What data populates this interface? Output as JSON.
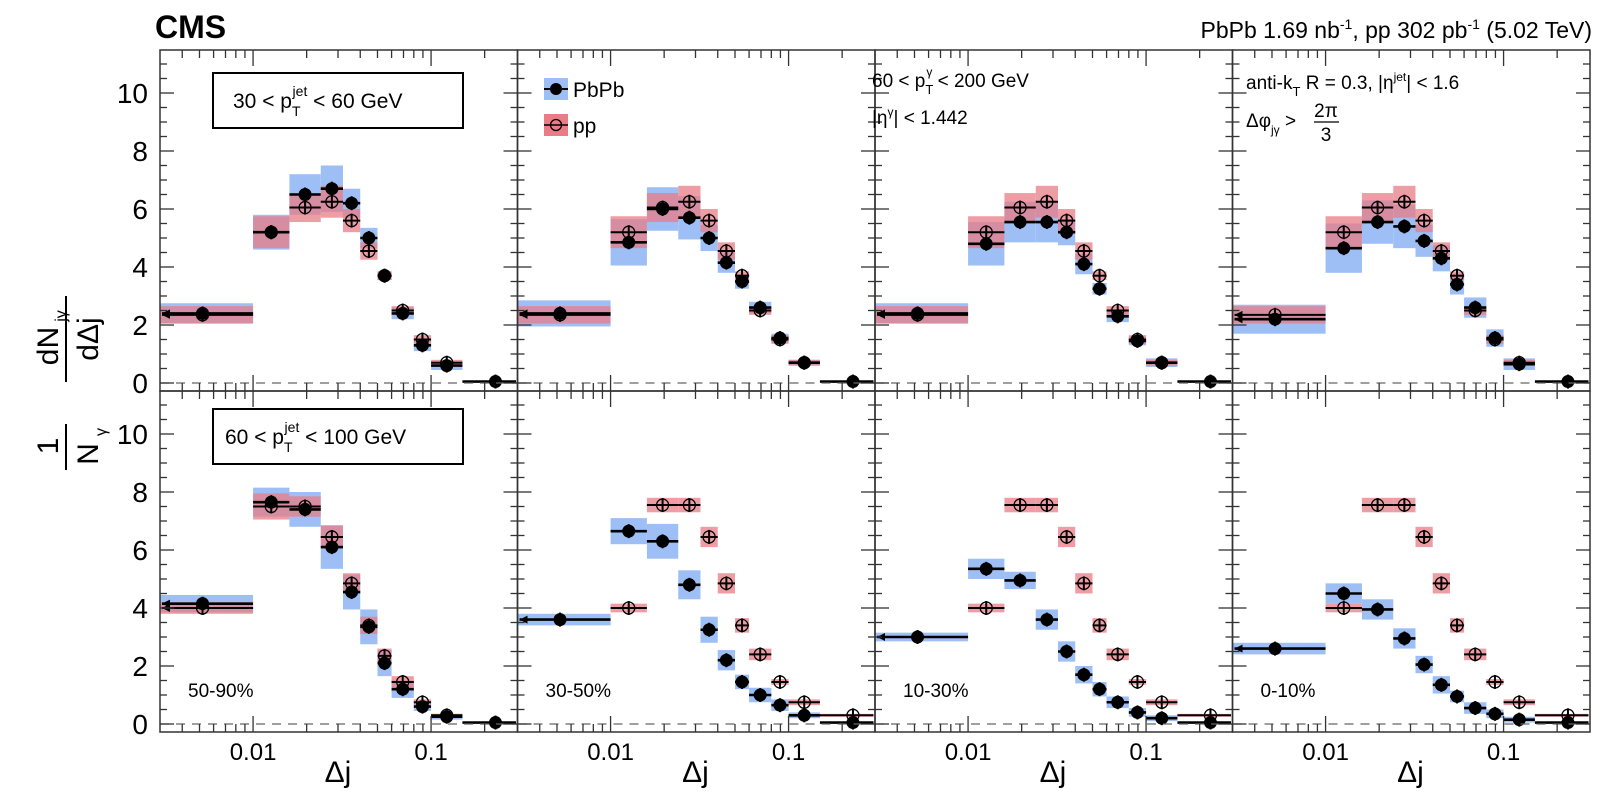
{
  "header": {
    "experiment": "CMS",
    "lumi_text": "PbPb 1.69 nb⁻¹, pp 302 pb⁻¹ (5.02 TeV)",
    "lumi_parts": {
      "a": "PbPb 1.69 nb",
      "a_sup": "-1",
      "b": ", pp 302 pb",
      "b_sup": "-1",
      "c": " (5.02 TeV)"
    }
  },
  "chart_data": {
    "type": "scatter",
    "title": "CMS",
    "xlabel": "Δj",
    "ylabel": "1/N_γ dN_jγ/dΔj",
    "xscale": "log",
    "xlim": [
      0.003,
      0.3
    ],
    "ylim": [
      -0.3,
      11.2
    ],
    "xticks": [
      {
        "v": 0.01,
        "label": "0.01"
      },
      {
        "v": 0.1,
        "label": "0.1"
      }
    ],
    "yticks": [
      0,
      2,
      4,
      6,
      8,
      10
    ],
    "reference_line": 0,
    "bin_edges": [
      0.003,
      0.01,
      0.016,
      0.024,
      0.032,
      0.04,
      0.05,
      0.06,
      0.08,
      0.1,
      0.15,
      0.3
    ],
    "legend": {
      "placement": "top-left of second panel",
      "entries": [
        {
          "name": "PbPb",
          "marker": "filled-circle",
          "color": "#000000",
          "band": "#9dbff5"
        },
        {
          "name": "pp",
          "marker": "open-circle",
          "color": "#000000",
          "band": "#ea7c86"
        }
      ]
    },
    "annotations": {
      "jetpt_top": "30 < p_T^jet < 60 GeV",
      "jetpt_bottom": "60 < p_T^jet < 100 GeV",
      "photon": [
        "60 < p_T^γ < 200 GeV",
        "|η^γ| < 1.442"
      ],
      "jet": [
        "anti-k_T R = 0.3, |η^jet| < 1.6",
        "Δφ_jγ > 2π/3"
      ]
    },
    "rows": [
      {
        "row": "top",
        "jet_pt": "30 < p_T^jet < 60 GeV",
        "panels": [
          {
            "centrality": "50-90%",
            "PbPb": [
              2.4,
              5.2,
              6.5,
              6.7,
              6.2,
              5.0,
              3.7,
              2.4,
              1.3,
              0.6,
              0.05
            ],
            "PbPb_sys": [
              0.35,
              0.6,
              0.7,
              0.8,
              0.5,
              0.35,
              0.15,
              0.2,
              0.2,
              0.15,
              0.0
            ],
            "pp": [
              2.35,
              5.2,
              6.05,
              6.25,
              5.6,
              4.55,
              3.7,
              2.5,
              1.5,
              0.7,
              0.05
            ],
            "pp_sys": [
              0.3,
              0.55,
              0.5,
              0.55,
              0.4,
              0.3,
              0.15,
              0.15,
              0.15,
              0.1,
              0.0
            ]
          },
          {
            "centrality": "30-50%",
            "PbPb": [
              2.4,
              4.85,
              6.0,
              5.7,
              5.0,
              4.15,
              3.5,
              2.6,
              1.55,
              0.7,
              0.05
            ],
            "PbPb_sys": [
              0.45,
              0.8,
              0.75,
              0.75,
              0.45,
              0.35,
              0.25,
              0.2,
              0.15,
              0.1,
              0.0
            ],
            "pp": [
              2.35,
              5.2,
              6.05,
              6.25,
              5.6,
              4.55,
              3.7,
              2.5,
              1.5,
              0.7,
              0.05
            ],
            "pp_sys": [
              0.3,
              0.55,
              0.5,
              0.55,
              0.4,
              0.3,
              0.15,
              0.15,
              0.15,
              0.1,
              0.0
            ]
          },
          {
            "centrality": "10-30%",
            "PbPb": [
              2.4,
              4.8,
              5.55,
              5.55,
              5.2,
              4.1,
              3.25,
              2.3,
              1.45,
              0.7,
              0.05
            ],
            "PbPb_sys": [
              0.35,
              0.75,
              0.7,
              0.7,
              0.45,
              0.35,
              0.2,
              0.2,
              0.15,
              0.15,
              0.0
            ],
            "pp": [
              2.35,
              5.2,
              6.05,
              6.25,
              5.6,
              4.55,
              3.7,
              2.5,
              1.5,
              0.7,
              0.05
            ],
            "pp_sys": [
              0.3,
              0.55,
              0.5,
              0.55,
              0.4,
              0.3,
              0.15,
              0.15,
              0.15,
              0.1,
              0.0
            ]
          },
          {
            "centrality": "0-10%",
            "PbPb": [
              2.2,
              4.65,
              5.55,
              5.4,
              4.9,
              4.3,
              3.4,
              2.6,
              1.55,
              0.65,
              0.05
            ],
            "PbPb_sys": [
              0.5,
              0.85,
              0.75,
              0.75,
              0.55,
              0.45,
              0.35,
              0.35,
              0.3,
              0.2,
              0.0
            ],
            "pp": [
              2.35,
              5.2,
              6.05,
              6.25,
              5.6,
              4.55,
              3.7,
              2.5,
              1.5,
              0.7,
              0.05
            ],
            "pp_sys": [
              0.3,
              0.55,
              0.5,
              0.55,
              0.4,
              0.3,
              0.15,
              0.15,
              0.15,
              0.1,
              0.0
            ]
          }
        ]
      },
      {
        "row": "bottom",
        "jet_pt": "60 < p_T^jet < 100 GeV",
        "panels": [
          {
            "centrality": "50-90%",
            "PbPb": [
              4.15,
              7.65,
              7.4,
              6.1,
              4.55,
              3.35,
              2.1,
              1.2,
              0.6,
              0.25,
              0.05
            ],
            "PbPb_sys": [
              0.3,
              0.5,
              0.6,
              0.75,
              0.6,
              0.6,
              0.45,
              0.3,
              0.15,
              0.1,
              0.0
            ],
            "pp": [
              4.0,
              7.5,
              7.5,
              6.45,
              4.85,
              3.4,
              2.35,
              1.45,
              0.75,
              0.3,
              0.05
            ],
            "pp_sys": [
              0.2,
              0.45,
              0.35,
              0.4,
              0.35,
              0.3,
              0.25,
              0.2,
              0.1,
              0.05,
              0.0
            ]
          },
          {
            "centrality": "30-50%",
            "PbPb": [
              3.6,
              6.65,
              6.3,
              4.8,
              3.25,
              2.2,
              1.45,
              1.0,
              0.65,
              0.3,
              0.05
            ],
            "PbPb_sys": [
              0.2,
              0.45,
              0.6,
              0.5,
              0.45,
              0.35,
              0.25,
              0.25,
              0.2,
              0.1,
              0.0
            ],
            "pp": [
              4.0,
              7.55,
              7.55,
              6.45,
              4.85,
              3.4,
              2.4,
              1.45,
              0.75,
              0.3,
              0.05
            ],
            "pp_sys": [
              0.15,
              0.25,
              0.25,
              0.35,
              0.35,
              0.25,
              0.2,
              0.1,
              0.1,
              0.05,
              0.0
            ]
          },
          {
            "centrality": "10-30%",
            "PbPb": [
              3.0,
              5.35,
              4.95,
              3.6,
              2.5,
              1.7,
              1.2,
              0.75,
              0.4,
              0.2,
              0.05
            ],
            "PbPb_sys": [
              0.15,
              0.35,
              0.3,
              0.35,
              0.35,
              0.3,
              0.25,
              0.2,
              0.15,
              0.1,
              0.0
            ],
            "pp": [
              4.0,
              7.55,
              7.55,
              6.45,
              4.85,
              3.4,
              2.4,
              1.45,
              0.75,
              0.3,
              0.05
            ],
            "pp_sys": [
              0.15,
              0.25,
              0.25,
              0.35,
              0.35,
              0.25,
              0.2,
              0.1,
              0.1,
              0.05,
              0.0
            ]
          },
          {
            "centrality": "0-10%",
            "PbPb": [
              2.6,
              4.5,
              3.95,
              2.95,
              2.05,
              1.35,
              0.95,
              0.55,
              0.35,
              0.15,
              0.05
            ],
            "PbPb_sys": [
              0.2,
              0.35,
              0.35,
              0.35,
              0.3,
              0.3,
              0.2,
              0.2,
              0.15,
              0.1,
              0.0
            ],
            "pp": [
              4.0,
              7.55,
              7.55,
              6.45,
              4.85,
              3.4,
              2.4,
              1.45,
              0.75,
              0.3,
              0.05
            ],
            "pp_sys": [
              0.15,
              0.25,
              0.25,
              0.35,
              0.35,
              0.25,
              0.2,
              0.1,
              0.1,
              0.05,
              0.0
            ]
          }
        ]
      }
    ],
    "colors": {
      "PbPb_band": "#9dbff5",
      "pp_band": "#ea7c86",
      "overlap": "#c2607a",
      "marker": "#000000"
    }
  }
}
